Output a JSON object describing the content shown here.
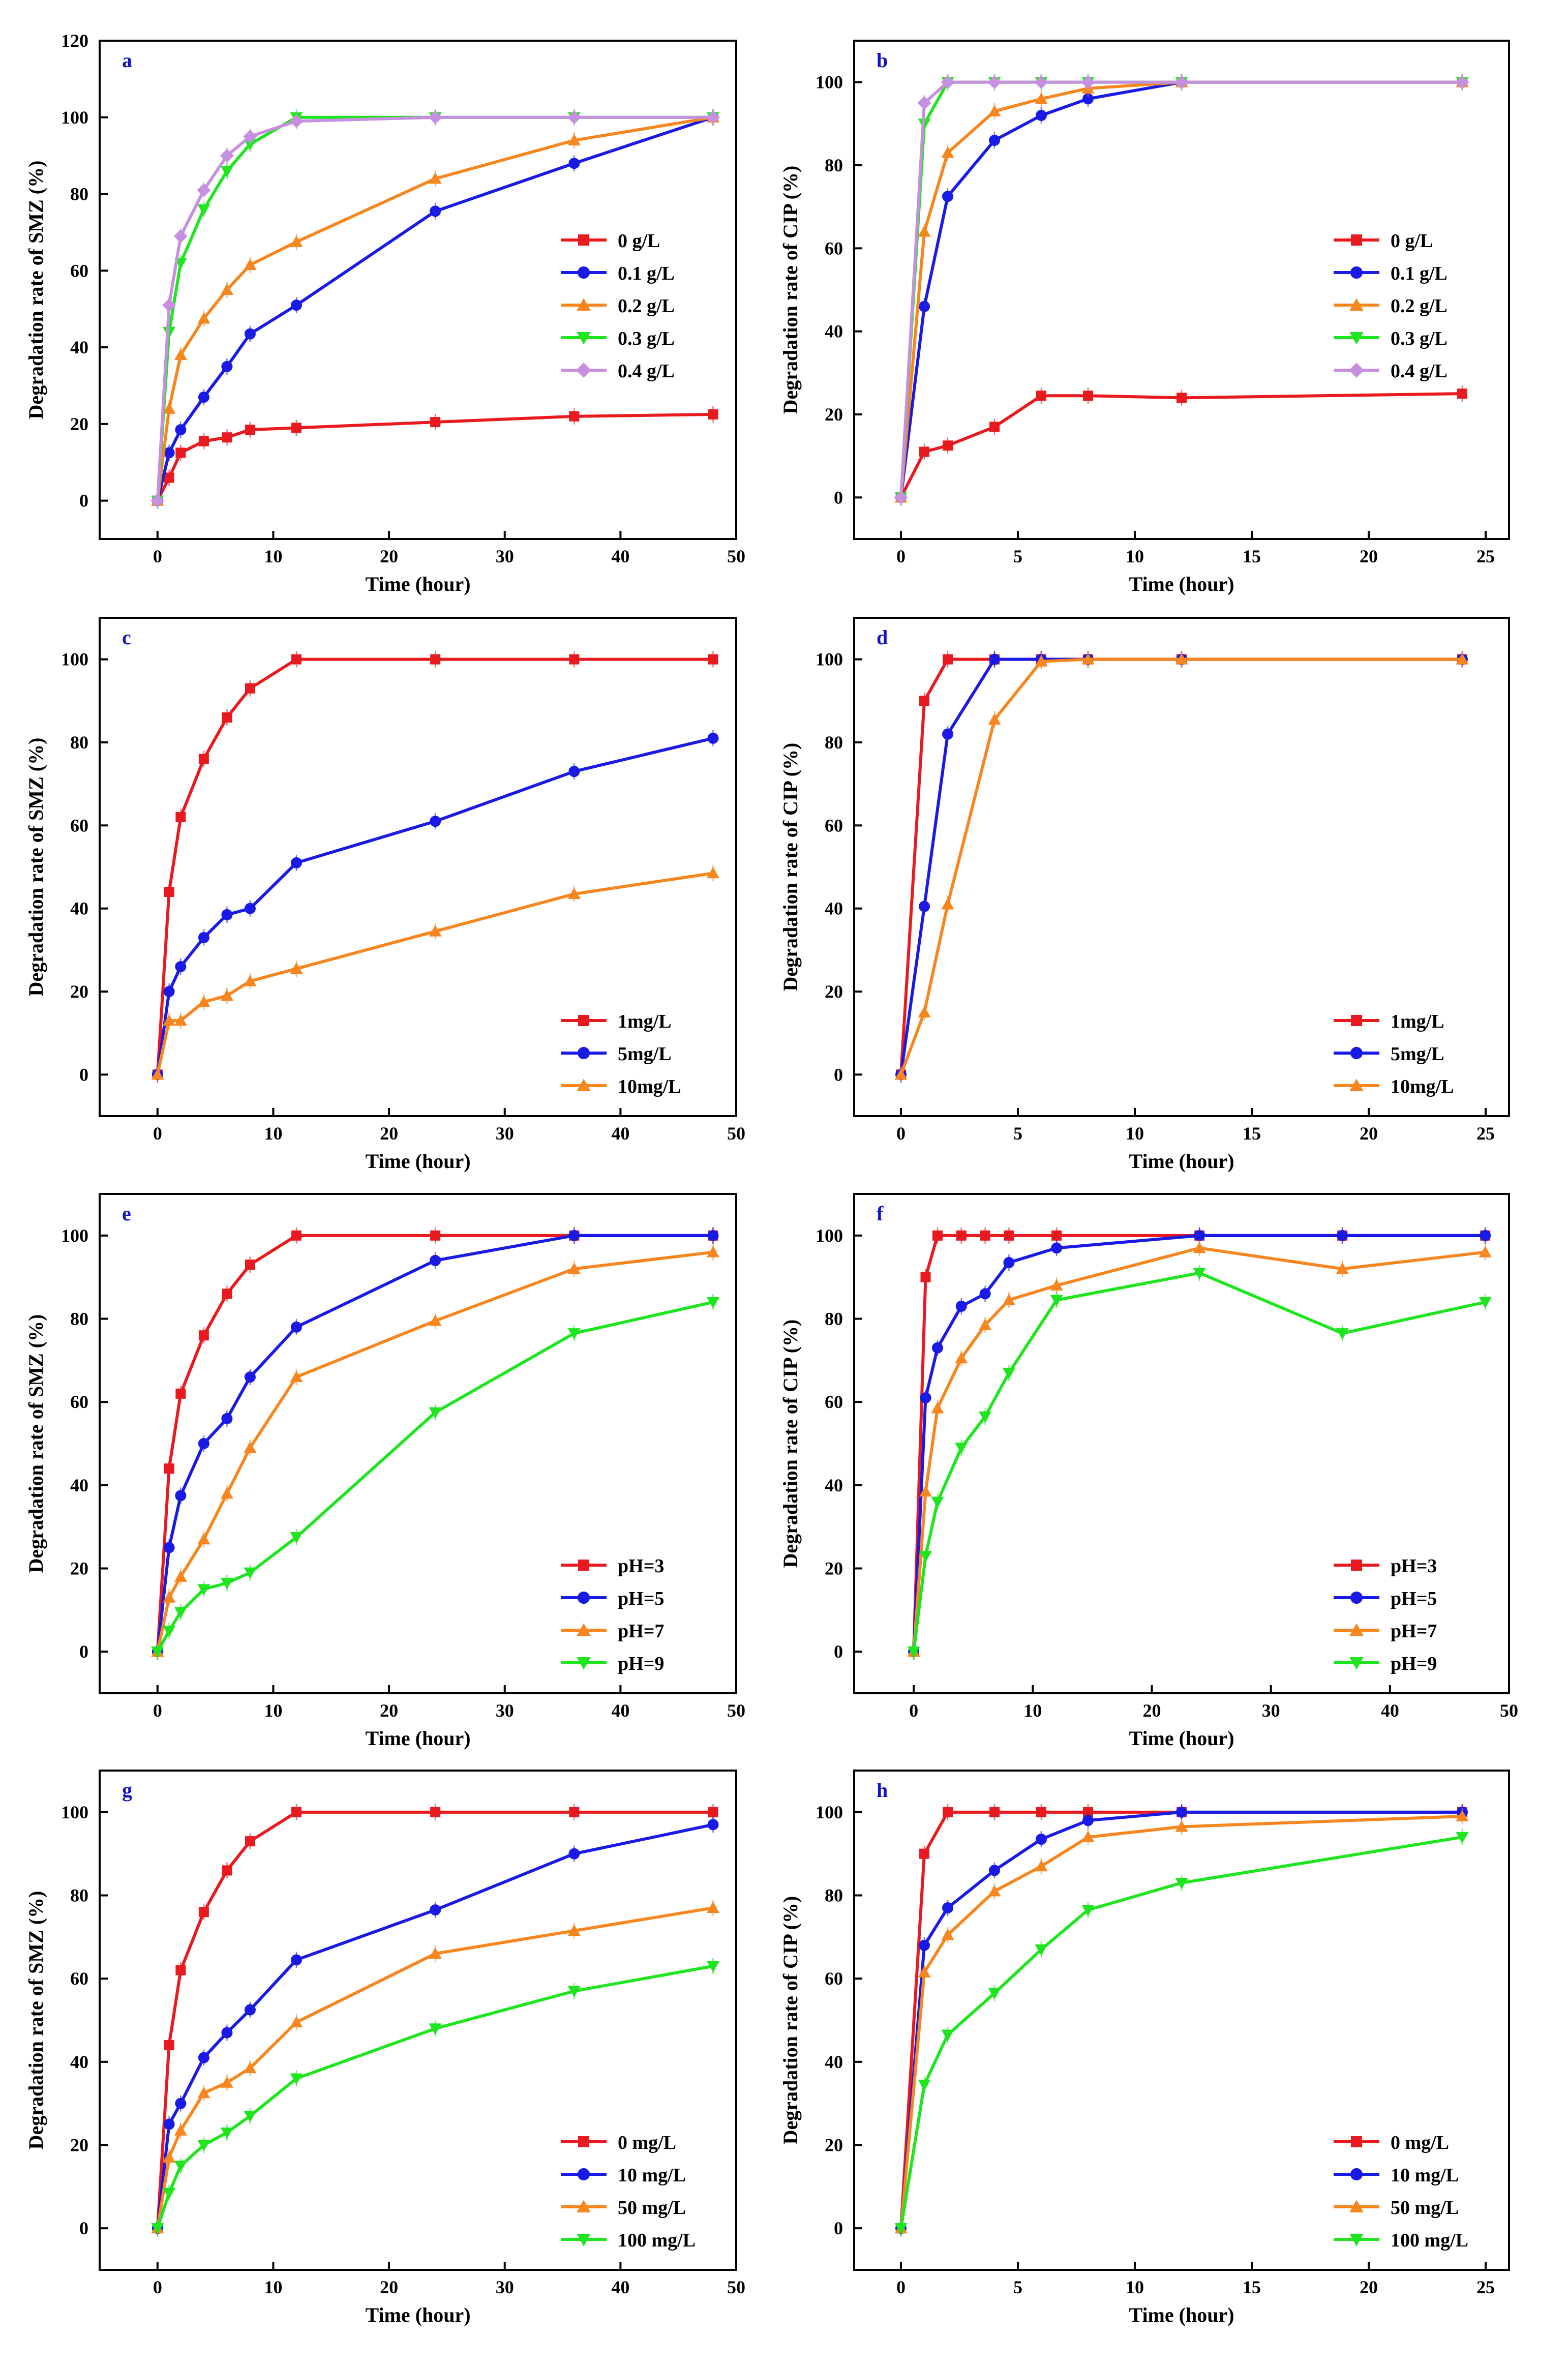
{
  "figure": {
    "panels": [
      "a",
      "b",
      "c",
      "d",
      "e",
      "f",
      "g",
      "h"
    ]
  },
  "chart_data": [
    {
      "panel": "a",
      "letter": "a",
      "type": "line",
      "xlabel": "Time (hour)",
      "ylabel": "Degradation rate of SMZ (%)",
      "xlim": [
        -5,
        50
      ],
      "ylim": [
        -10,
        120
      ],
      "xticks": [
        0,
        10,
        20,
        30,
        40,
        50
      ],
      "yticks": [
        0,
        20,
        40,
        60,
        80,
        100,
        120
      ],
      "legend": "right-middle",
      "series": [
        {
          "name": "0 g/L",
          "color": "#e8191f",
          "marker": "square",
          "x": [
            0,
            1,
            2,
            4,
            6,
            8,
            12,
            24,
            36,
            48
          ],
          "y": [
            0,
            6,
            12.5,
            15.5,
            16.5,
            18.5,
            19,
            20.5,
            22,
            22.5
          ]
        },
        {
          "name": "0.1 g/L",
          "color": "#1a1ae6",
          "marker": "circle",
          "x": [
            0,
            1,
            2,
            4,
            6,
            8,
            12,
            24,
            36,
            48
          ],
          "y": [
            0,
            12.5,
            18.5,
            27,
            35,
            43.5,
            51,
            75.5,
            88,
            100
          ]
        },
        {
          "name": "0.2 g/L",
          "color": "#f7861e",
          "marker": "triangle-up",
          "x": [
            0,
            1,
            2,
            4,
            6,
            8,
            12,
            24,
            36,
            48
          ],
          "y": [
            0,
            24,
            38,
            47.5,
            55,
            61.5,
            67.5,
            84,
            94,
            100
          ]
        },
        {
          "name": "0.3 g/L",
          "color": "#1ee61e",
          "marker": "triangle-down",
          "x": [
            0,
            1,
            2,
            4,
            6,
            8,
            12,
            24,
            36,
            48
          ],
          "y": [
            0,
            44,
            62,
            76,
            86,
            93,
            100,
            100,
            100,
            100
          ]
        },
        {
          "name": "0.4 g/L",
          "color": "#c78fdf",
          "marker": "diamond",
          "x": [
            0,
            1,
            2,
            4,
            6,
            8,
            12,
            24,
            36,
            48
          ],
          "y": [
            0,
            51,
            69,
            81,
            90,
            95,
            99,
            100,
            100,
            100
          ]
        }
      ]
    },
    {
      "panel": "b",
      "letter": "b",
      "type": "line",
      "xlabel": "Time (hour)",
      "ylabel": "Degradation rate of CIP (%)",
      "xlim": [
        -2,
        26
      ],
      "ylim": [
        -10,
        110
      ],
      "xticks": [
        0,
        5,
        10,
        15,
        20,
        25
      ],
      "yticks": [
        0,
        20,
        40,
        60,
        80,
        100
      ],
      "legend": "right-middle",
      "series": [
        {
          "name": "0 g/L",
          "color": "#e8191f",
          "marker": "square",
          "x": [
            0,
            1,
            2,
            4,
            6,
            8,
            12,
            24
          ],
          "y": [
            0,
            11,
            12.5,
            17,
            24.5,
            24.5,
            24,
            25
          ]
        },
        {
          "name": "0.1 g/L",
          "color": "#1a1ae6",
          "marker": "circle",
          "x": [
            0,
            1,
            2,
            4,
            6,
            8,
            12,
            24
          ],
          "y": [
            0,
            46,
            72.5,
            86,
            92,
            96,
            100,
            100
          ]
        },
        {
          "name": "0.2 g/L",
          "color": "#f7861e",
          "marker": "triangle-up",
          "x": [
            0,
            1,
            2,
            4,
            6,
            8,
            12,
            24
          ],
          "y": [
            0,
            64,
            83,
            93,
            96,
            98.5,
            100,
            100
          ]
        },
        {
          "name": "0.3 g/L",
          "color": "#1ee61e",
          "marker": "triangle-down",
          "x": [
            0,
            1,
            2,
            4,
            6,
            8,
            12,
            24
          ],
          "y": [
            0,
            90,
            100,
            100,
            100,
            100,
            100,
            100
          ]
        },
        {
          "name": "0.4 g/L",
          "color": "#c78fdf",
          "marker": "diamond",
          "x": [
            0,
            1,
            2,
            4,
            6,
            8,
            12,
            24
          ],
          "y": [
            0,
            95,
            100,
            100,
            100,
            100,
            100,
            100
          ]
        }
      ]
    },
    {
      "panel": "c",
      "letter": "c",
      "type": "line",
      "xlabel": "Time (hour)",
      "ylabel": "Degradation rate of SMZ (%)",
      "xlim": [
        -5,
        50
      ],
      "ylim": [
        -10,
        110
      ],
      "xticks": [
        0,
        10,
        20,
        30,
        40,
        50
      ],
      "yticks": [
        0,
        20,
        40,
        60,
        80,
        100
      ],
      "legend": "bottom-right",
      "series": [
        {
          "name": "1mg/L",
          "color": "#e8191f",
          "marker": "square",
          "x": [
            0,
            1,
            2,
            4,
            6,
            8,
            12,
            24,
            36,
            48
          ],
          "y": [
            0,
            44,
            62,
            76,
            86,
            93,
            100,
            100,
            100,
            100
          ]
        },
        {
          "name": "5mg/L",
          "color": "#1a1ae6",
          "marker": "circle",
          "x": [
            0,
            1,
            2,
            4,
            6,
            8,
            12,
            24,
            36,
            48
          ],
          "y": [
            0,
            20,
            26,
            33,
            38.5,
            40,
            51,
            61,
            73,
            81
          ]
        },
        {
          "name": "10mg/L",
          "color": "#f7861e",
          "marker": "triangle-up",
          "x": [
            0,
            1,
            2,
            4,
            6,
            8,
            12,
            24,
            36,
            48
          ],
          "y": [
            0,
            13,
            13,
            17.5,
            19,
            22.5,
            25.5,
            34.5,
            43.5,
            48.5
          ]
        }
      ]
    },
    {
      "panel": "d",
      "letter": "d",
      "type": "line",
      "xlabel": "Time (hour)",
      "ylabel": "Degradation rate of CIP (%)",
      "xlim": [
        -2,
        26
      ],
      "ylim": [
        -10,
        110
      ],
      "xticks": [
        0,
        5,
        10,
        15,
        20,
        25
      ],
      "yticks": [
        0,
        20,
        40,
        60,
        80,
        100
      ],
      "legend": "bottom-right",
      "series": [
        {
          "name": "1mg/L",
          "color": "#e8191f",
          "marker": "square",
          "x": [
            0,
            1,
            2,
            4,
            6,
            8,
            12,
            24
          ],
          "y": [
            0,
            90,
            100,
            100,
            100,
            100,
            100,
            100
          ]
        },
        {
          "name": "5mg/L",
          "color": "#1a1ae6",
          "marker": "circle",
          "x": [
            0,
            1,
            2,
            4,
            6,
            8,
            12,
            24
          ],
          "y": [
            0,
            40.5,
            82,
            100,
            100,
            100,
            100,
            100
          ]
        },
        {
          "name": "10mg/L",
          "color": "#f7861e",
          "marker": "triangle-up",
          "x": [
            0,
            1,
            2,
            4,
            6,
            8,
            12,
            24
          ],
          "y": [
            0,
            15,
            41,
            85.5,
            99.5,
            100,
            100,
            100
          ]
        }
      ]
    },
    {
      "panel": "e",
      "letter": "e",
      "type": "line",
      "xlabel": "Time (hour)",
      "ylabel": "Degradation rate of SMZ (%)",
      "xlim": [
        -5,
        50
      ],
      "ylim": [
        -10,
        110
      ],
      "xticks": [
        0,
        10,
        20,
        30,
        40,
        50
      ],
      "yticks": [
        0,
        20,
        40,
        60,
        80,
        100
      ],
      "legend": "bottom-right",
      "series": [
        {
          "name": "pH=3",
          "color": "#e8191f",
          "marker": "square",
          "x": [
            0,
            1,
            2,
            4,
            6,
            8,
            12,
            24,
            36,
            48
          ],
          "y": [
            0,
            44,
            62,
            76,
            86,
            93,
            100,
            100,
            100,
            100
          ]
        },
        {
          "name": "pH=5",
          "color": "#1a1ae6",
          "marker": "circle",
          "x": [
            0,
            1,
            2,
            4,
            6,
            8,
            12,
            24,
            36,
            48
          ],
          "y": [
            0,
            25,
            37.5,
            50,
            56,
            66,
            78,
            94,
            100,
            100
          ]
        },
        {
          "name": "pH=7",
          "color": "#f7861e",
          "marker": "triangle-up",
          "x": [
            0,
            1,
            2,
            4,
            6,
            8,
            12,
            24,
            36,
            48
          ],
          "y": [
            0,
            13,
            18,
            27,
            38,
            49,
            66,
            79.5,
            92,
            96
          ]
        },
        {
          "name": "pH=9",
          "color": "#1ee61e",
          "marker": "triangle-down",
          "x": [
            0,
            1,
            2,
            4,
            6,
            8,
            12,
            24,
            36,
            48
          ],
          "y": [
            0,
            5,
            9.5,
            15,
            16.5,
            19,
            27.5,
            57.5,
            76.5,
            84
          ]
        }
      ]
    },
    {
      "panel": "f",
      "letter": "f",
      "type": "line",
      "xlabel": "Time (hour)",
      "ylabel": "Degradation rate of CIP (%)",
      "xlim": [
        -5,
        50
      ],
      "ylim": [
        -10,
        110
      ],
      "xticks": [
        0,
        10,
        20,
        30,
        40,
        50
      ],
      "yticks": [
        0,
        20,
        40,
        60,
        80,
        100
      ],
      "legend": "bottom-right",
      "series": [
        {
          "name": "pH=3",
          "color": "#e8191f",
          "marker": "square",
          "x": [
            0,
            1,
            2,
            4,
            6,
            8,
            12,
            24,
            36,
            48
          ],
          "y": [
            0,
            90,
            100,
            100,
            100,
            100,
            100,
            100,
            100,
            100
          ]
        },
        {
          "name": "pH=5",
          "color": "#1a1ae6",
          "marker": "circle",
          "x": [
            0,
            1,
            2,
            4,
            6,
            8,
            12,
            24,
            36,
            48
          ],
          "y": [
            0,
            61,
            73,
            83,
            86,
            93.5,
            97,
            100,
            100,
            100
          ]
        },
        {
          "name": "pH=7",
          "color": "#f7861e",
          "marker": "triangle-up",
          "x": [
            0,
            1,
            2,
            4,
            6,
            8,
            12,
            24,
            36,
            48
          ],
          "y": [
            0,
            38.5,
            58.5,
            70.5,
            78.5,
            84.5,
            88,
            97,
            92,
            96
          ]
        },
        {
          "name": "pH=9",
          "color": "#1ee61e",
          "marker": "triangle-down",
          "x": [
            0,
            1,
            2,
            4,
            6,
            8,
            12,
            24,
            36,
            48
          ],
          "y": [
            0,
            23,
            36,
            49,
            56.5,
            67,
            84.5,
            91,
            76.5,
            84
          ]
        }
      ]
    },
    {
      "panel": "g",
      "letter": "g",
      "type": "line",
      "xlabel": "Time (hour)",
      "ylabel": "Degradation rate of SMZ (%)",
      "xlim": [
        -5,
        50
      ],
      "ylim": [
        -10,
        110
      ],
      "xticks": [
        0,
        10,
        20,
        30,
        40,
        50
      ],
      "yticks": [
        0,
        20,
        40,
        60,
        80,
        100
      ],
      "legend": "bottom-right",
      "series": [
        {
          "name": "0 mg/L",
          "color": "#e8191f",
          "marker": "square",
          "x": [
            0,
            1,
            2,
            4,
            6,
            8,
            12,
            24,
            36,
            48
          ],
          "y": [
            0,
            44,
            62,
            76,
            86,
            93,
            100,
            100,
            100,
            100
          ]
        },
        {
          "name": "10 mg/L",
          "color": "#1a1ae6",
          "marker": "circle",
          "x": [
            0,
            1,
            2,
            4,
            6,
            8,
            12,
            24,
            36,
            48
          ],
          "y": [
            0,
            25,
            30,
            41,
            47,
            52.5,
            64.5,
            76.5,
            90,
            97
          ]
        },
        {
          "name": "50 mg/L",
          "color": "#f7861e",
          "marker": "triangle-up",
          "x": [
            0,
            1,
            2,
            4,
            6,
            8,
            12,
            24,
            36,
            48
          ],
          "y": [
            0,
            17,
            23.5,
            32.5,
            35,
            38.5,
            49.5,
            66,
            71.5,
            77
          ]
        },
        {
          "name": "100 mg/L",
          "color": "#1ee61e",
          "marker": "triangle-down",
          "x": [
            0,
            1,
            2,
            4,
            6,
            8,
            12,
            24,
            36,
            48
          ],
          "y": [
            0,
            8.5,
            15,
            20,
            23,
            27,
            36,
            48,
            57,
            63
          ]
        }
      ]
    },
    {
      "panel": "h",
      "letter": "h",
      "type": "line",
      "xlabel": "Time (hour)",
      "ylabel": "Degradation rate of CIP (%)",
      "xlim": [
        -2,
        26
      ],
      "ylim": [
        -10,
        110
      ],
      "xticks": [
        0,
        5,
        10,
        15,
        20,
        25
      ],
      "yticks": [
        0,
        20,
        40,
        60,
        80,
        100
      ],
      "legend": "bottom-right",
      "series": [
        {
          "name": "0 mg/L",
          "color": "#e8191f",
          "marker": "square",
          "x": [
            0,
            1,
            2,
            4,
            6,
            8,
            12,
            24
          ],
          "y": [
            0,
            90,
            100,
            100,
            100,
            100,
            100,
            100
          ]
        },
        {
          "name": "10 mg/L",
          "color": "#1a1ae6",
          "marker": "circle",
          "x": [
            0,
            1,
            2,
            4,
            6,
            8,
            12,
            24
          ],
          "y": [
            0,
            68,
            77,
            86,
            93.5,
            98,
            100,
            100
          ]
        },
        {
          "name": "50 mg/L",
          "color": "#f7861e",
          "marker": "triangle-up",
          "x": [
            0,
            1,
            2,
            4,
            6,
            8,
            12,
            24
          ],
          "y": [
            0,
            61.5,
            70.5,
            81,
            87,
            94,
            96.5,
            99
          ]
        },
        {
          "name": "100 mg/L",
          "color": "#1ee61e",
          "marker": "triangle-down",
          "x": [
            0,
            1,
            2,
            4,
            6,
            8,
            12,
            24
          ],
          "y": [
            0,
            34.5,
            46.5,
            56.5,
            67,
            76.5,
            83,
            94
          ]
        }
      ]
    }
  ]
}
